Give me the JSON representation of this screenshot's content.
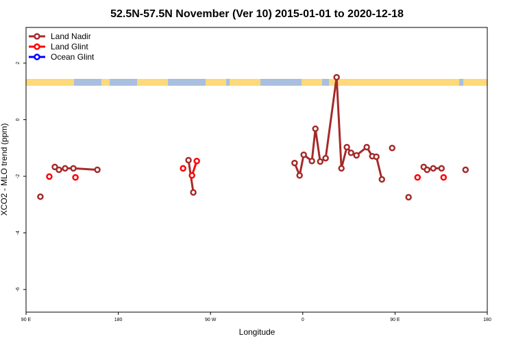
{
  "chart_data": {
    "type": "line",
    "title": "52.5N-57.5N November (Ver 10)   2015-01-01 to 2020-12-18",
    "x_label": "Longitude",
    "y_label": "XCO2 - MLO trend (ppm)",
    "xlim": [
      90,
      540
    ],
    "xticks": [
      {
        "value": 90,
        "label": "90 E"
      },
      180,
      {
        "value": 270,
        "label": "90 W"
      },
      {
        "value": 360,
        "label": "0"
      },
      {
        "value": 450,
        "label": "90 E"
      },
      {
        "value": 540,
        "label": "180"
      }
    ],
    "ylim": [
      -6.8,
      3.26
    ],
    "yticks": [
      -6,
      -4,
      -2,
      0,
      2
    ],
    "legend": "top-left",
    "series": [
      {
        "name": "Land Nadir",
        "color": "#a52a2a",
        "x": [
          104.0,
          null,
          118.1,
          122.1,
          128.1,
          136.2,
          159.6,
          null,
          248.5,
          253.2,
          null,
          352.0,
          356.9,
          360.9,
          368.9,
          372.3,
          377.0,
          382.3,
          393.0,
          397.7,
          403.0,
          407.1,
          412.4,
          422.4,
          427.8,
          431.8,
          437.2,
          null,
          447.2,
          null,
          463.2,
          null,
          478.0,
          481.3,
          487.3,
          495.4,
          null,
          518.8
        ],
        "values": [
          -2.72,
          null,
          -1.67,
          -1.77,
          -1.72,
          -1.72,
          -1.77,
          null,
          -1.43,
          -2.57,
          null,
          -1.53,
          -1.97,
          -1.24,
          -1.46,
          -0.32,
          -1.48,
          -1.36,
          1.5,
          -1.72,
          -0.97,
          -1.17,
          -1.26,
          -0.97,
          -1.29,
          -1.31,
          -2.11,
          null,
          -1.0,
          null,
          -2.74,
          null,
          -1.67,
          -1.77,
          -1.72,
          -1.72,
          null,
          -1.77
        ]
      },
      {
        "name": "Land Glint",
        "color": "#ff0000",
        "x": [
          112.7,
          null,
          138.2,
          null,
          243.2,
          null,
          251.9,
          256.6,
          null,
          472.0,
          null,
          497.4
        ],
        "values": [
          -2.01,
          null,
          -2.04,
          null,
          -1.72,
          null,
          -1.97,
          -1.46,
          null,
          -2.04,
          null,
          -2.04
        ]
      },
      {
        "name": "Ocean Glint",
        "color": "#0000ff",
        "x": [],
        "values": []
      }
    ]
  }
}
